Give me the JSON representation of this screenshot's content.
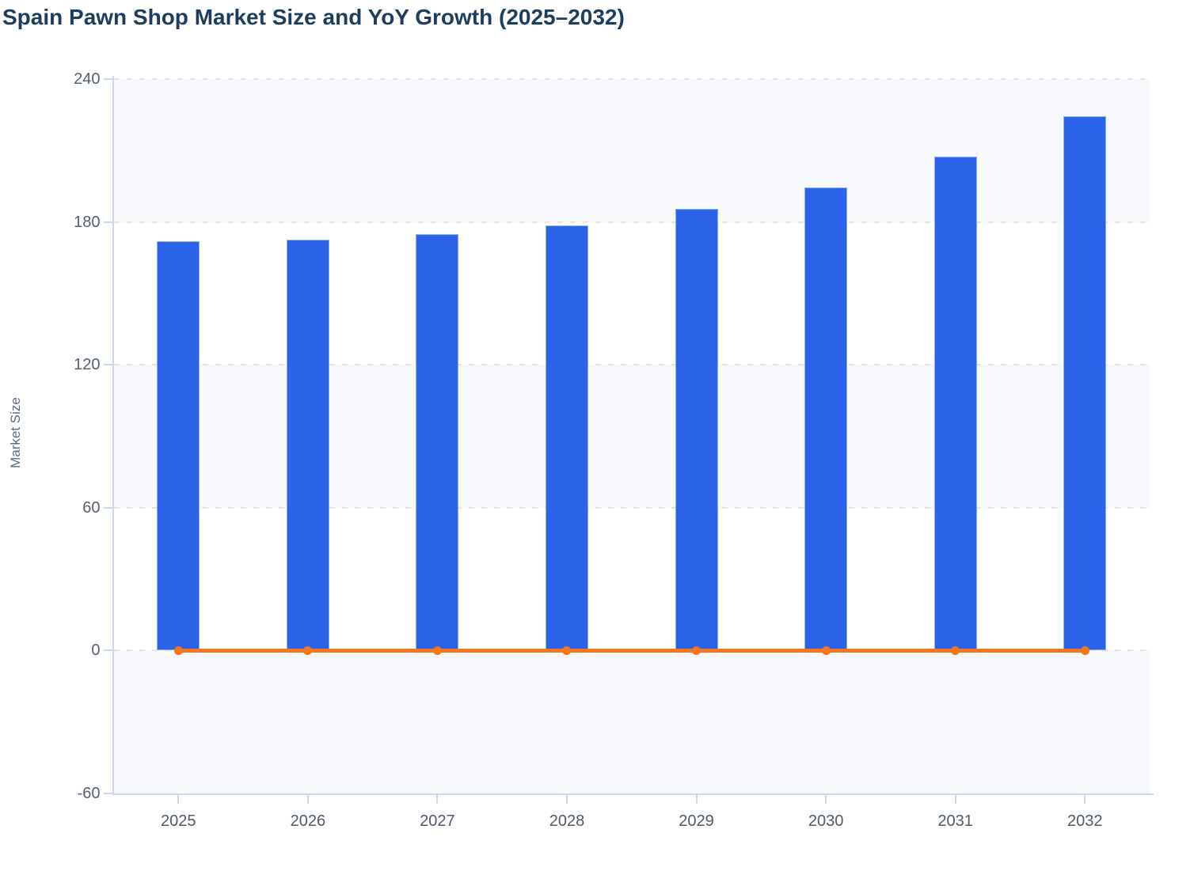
{
  "chart_data": {
    "type": "bar",
    "title": "Spain Pawn Shop Market Size and YoY Growth (2025–2032)",
    "xlabel": "",
    "ylabel": "Market Size",
    "categories": [
      "2025",
      "2026",
      "2027",
      "2028",
      "2029",
      "2030",
      "2031",
      "2032"
    ],
    "series": [
      {
        "name": "Market Size",
        "type": "bar",
        "color": "#2a63e8",
        "values": [
          172,
          172.5,
          175,
          178.5,
          185.5,
          194.5,
          207.5,
          224.5
        ]
      },
      {
        "name": "YoY Growth",
        "type": "line",
        "color": "#f7751c",
        "values": [
          0,
          0.003,
          0.014,
          0.02,
          0.039,
          0.049,
          0.067,
          0.082
        ]
      }
    ],
    "ylim": [
      -60,
      240
    ],
    "yticks": [
      -60,
      0,
      60,
      120,
      180,
      240
    ],
    "grid": "dashed-horizontal",
    "plot_bands": "alternating",
    "legend": "none"
  },
  "colors": {
    "bar": "#2a63e8",
    "bar_border": "#8badf2",
    "line": "#f7751c",
    "band": "#f7f8fb",
    "grid": "#e2e4e7",
    "axis": "#ccd6ee",
    "title_text": "#1d3d5e",
    "y_tick_text": "#55606f",
    "x_tick_text": "#4e5a69",
    "y_axis_title_text": "#5c6b80"
  }
}
